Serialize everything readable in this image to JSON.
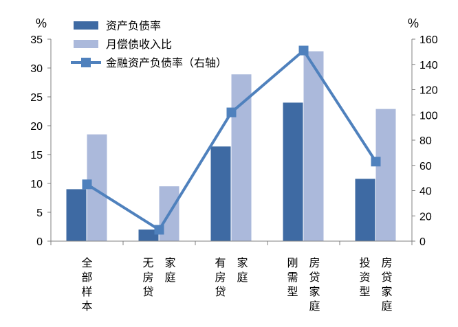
{
  "chart_data": {
    "type": "bar",
    "categories": [
      {
        "col1": "全部样本",
        "col2": ""
      },
      {
        "col1": "无房贷",
        "col2": "家庭"
      },
      {
        "col1": "有房贷",
        "col2": "家庭"
      },
      {
        "col1": "刚需型",
        "col2": "房贷家庭"
      },
      {
        "col1": "投资型",
        "col2": "房贷家庭"
      }
    ],
    "series": [
      {
        "name": "资产负债率",
        "axis": "left",
        "kind": "bar",
        "color": "#3e6aa3",
        "values": [
          9.0,
          2.0,
          16.4,
          24.0,
          10.8
        ]
      },
      {
        "name": "月偿债收入比",
        "axis": "left",
        "kind": "bar",
        "color": "#abb9db",
        "values": [
          18.5,
          9.5,
          28.9,
          32.9,
          22.9
        ]
      },
      {
        "name": "金融资产负债率（右轴）",
        "axis": "right",
        "kind": "line",
        "color": "#4f81bd",
        "values": [
          45,
          9,
          102,
          151,
          63
        ]
      }
    ],
    "left_axis": {
      "unit": "%",
      "ylim": [
        0,
        35
      ],
      "ticks": [
        0,
        5,
        10,
        15,
        20,
        25,
        30,
        35
      ]
    },
    "right_axis": {
      "unit": "%",
      "ylim": [
        0,
        160
      ],
      "ticks": [
        0,
        20,
        40,
        60,
        80,
        100,
        120,
        140,
        160
      ]
    },
    "legend_position": "top-left",
    "grid": false
  }
}
